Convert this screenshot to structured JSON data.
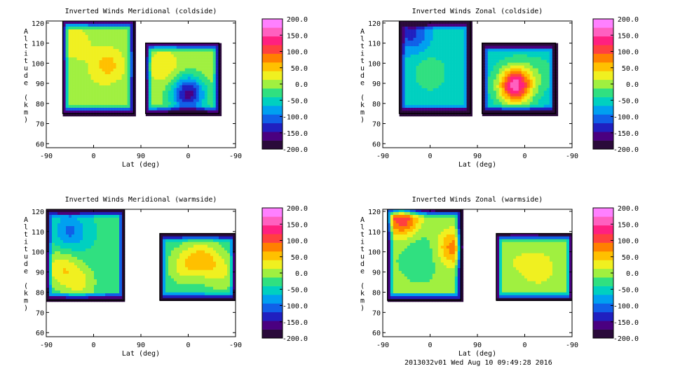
{
  "panels": [
    {
      "title": "Inverted Winds Meridional (coldside)",
      "chart_data": {
        "type": "heatmap",
        "title": "Inverted Winds Meridional (coldside)",
        "xlabel": "Lat (deg)",
        "ylabel": "Altitude (km)",
        "x_ticks": [
          "-90",
          "0",
          "90",
          "0",
          "-90"
        ],
        "y_ticks": [
          "60",
          "70",
          "80",
          "90",
          "100",
          "110",
          "120"
        ],
        "xlim": [
          0,
          4
        ],
        "ylim": [
          58,
          121
        ],
        "colorbar_ticks": [
          "200.0",
          "150.0",
          "100.0",
          "50.0",
          "0.0",
          "-50.0",
          "-100.0",
          "-150.0",
          "-200.0"
        ],
        "crange": [
          -200,
          200
        ],
        "regions": [
          {
            "xlim": [
              0.35,
              1.85
            ],
            "ylim": [
              75,
              121
            ]
          },
          {
            "xlim": [
              2.1,
              3.65
            ],
            "ylim": [
              75,
              110
            ]
          }
        ],
        "blobs": [
          {
            "x": 1.3,
            "y": 99,
            "value": 50
          },
          {
            "x": 0.6,
            "y": 110,
            "value": 30
          },
          {
            "x": 0.8,
            "y": 88,
            "value": 5
          },
          {
            "x": 2.5,
            "y": 98,
            "value": 35
          },
          {
            "x": 3.2,
            "y": 95,
            "value": 10
          },
          {
            "x": 3.0,
            "y": 85,
            "value": -160
          }
        ],
        "base": -5
      }
    },
    {
      "title": "Inverted Winds Zonal (coldside)",
      "chart_data": {
        "type": "heatmap",
        "title": "Inverted Winds Zonal (coldside)",
        "xlabel": "Lat (deg)",
        "ylabel": "Altitude (km)",
        "x_ticks": [
          "-90",
          "0",
          "90",
          "0",
          "-90"
        ],
        "y_ticks": [
          "60",
          "70",
          "80",
          "90",
          "100",
          "110",
          "120"
        ],
        "xlim": [
          0,
          4
        ],
        "ylim": [
          58,
          121
        ],
        "colorbar_ticks": [
          "200.0",
          "150.0",
          "100.0",
          "50.0",
          "0.0",
          "-50.0",
          "-100.0",
          "-150.0",
          "-200.0"
        ],
        "crange": [
          -200,
          200
        ],
        "regions": [
          {
            "xlim": [
              0.35,
              1.85
            ],
            "ylim": [
              75,
              121
            ]
          },
          {
            "xlim": [
              2.1,
              3.65
            ],
            "ylim": [
              75,
              110
            ]
          }
        ],
        "blobs": [
          {
            "x": 0.6,
            "y": 115,
            "value": -130
          },
          {
            "x": 1.0,
            "y": 95,
            "value": -20
          },
          {
            "x": 2.8,
            "y": 89,
            "value": 160
          },
          {
            "x": 3.3,
            "y": 95,
            "value": -30
          }
        ],
        "base": -55
      }
    },
    {
      "title": "Inverted Winds Meridional (warmside)",
      "chart_data": {
        "type": "heatmap",
        "title": "Inverted Winds Meridional (warmside)",
        "xlabel": "Lat (deg)",
        "ylabel": "Altitude (km)",
        "x_ticks": [
          "-90",
          "0",
          "90",
          "0",
          "-90"
        ],
        "y_ticks": [
          "60",
          "70",
          "80",
          "90",
          "100",
          "110",
          "120"
        ],
        "xlim": [
          0,
          4
        ],
        "ylim": [
          58,
          121
        ],
        "colorbar_ticks": [
          "200.0",
          "150.0",
          "100.0",
          "50.0",
          "0.0",
          "-50.0",
          "-100.0",
          "-150.0",
          "-200.0"
        ],
        "crange": [
          -200,
          200
        ],
        "regions": [
          {
            "xlim": [
              0.0,
              1.65
            ],
            "ylim": [
              76,
              121
            ]
          },
          {
            "xlim": [
              2.4,
              4.0
            ],
            "ylim": [
              76,
              109
            ]
          }
        ],
        "blobs": [
          {
            "x": 0.5,
            "y": 110,
            "value": -100
          },
          {
            "x": 0.3,
            "y": 92,
            "value": 30
          },
          {
            "x": 0.7,
            "y": 85,
            "value": 20
          },
          {
            "x": 3.3,
            "y": 97,
            "value": 40
          },
          {
            "x": 2.9,
            "y": 93,
            "value": 20
          },
          {
            "x": 3.7,
            "y": 90,
            "value": 15
          }
        ],
        "base": -35
      }
    },
    {
      "title": "Inverted Winds Zonal (warmside)",
      "chart_data": {
        "type": "heatmap",
        "title": "Inverted Winds Zonal (warmside)",
        "xlabel": "Lat (deg)",
        "ylabel": "Altitude (km)",
        "x_ticks": [
          "-90",
          "0",
          "90",
          "0",
          "-90"
        ],
        "y_ticks": [
          "60",
          "70",
          "80",
          "90",
          "100",
          "110",
          "120"
        ],
        "xlim": [
          0,
          4
        ],
        "ylim": [
          58,
          121
        ],
        "colorbar_ticks": [
          "200.0",
          "150.0",
          "100.0",
          "50.0",
          "0.0",
          "-50.0",
          "-100.0",
          "-150.0",
          "-200.0"
        ],
        "crange": [
          -200,
          200
        ],
        "regions": [
          {
            "xlim": [
              0.1,
              1.65
            ],
            "ylim": [
              76,
              121
            ]
          },
          {
            "xlim": [
              2.4,
              4.0
            ],
            "ylim": [
              76,
              109
            ]
          }
        ],
        "blobs": [
          {
            "x": 0.4,
            "y": 117,
            "value": 120
          },
          {
            "x": 1.5,
            "y": 102,
            "value": 80
          },
          {
            "x": 0.8,
            "y": 98,
            "value": -40
          },
          {
            "x": 3.3,
            "y": 92,
            "value": 35
          },
          {
            "x": 2.8,
            "y": 95,
            "value": 10
          }
        ],
        "base": -10
      }
    }
  ],
  "footer": "2013032v01 Wed Aug 10 09:49:28 2016"
}
